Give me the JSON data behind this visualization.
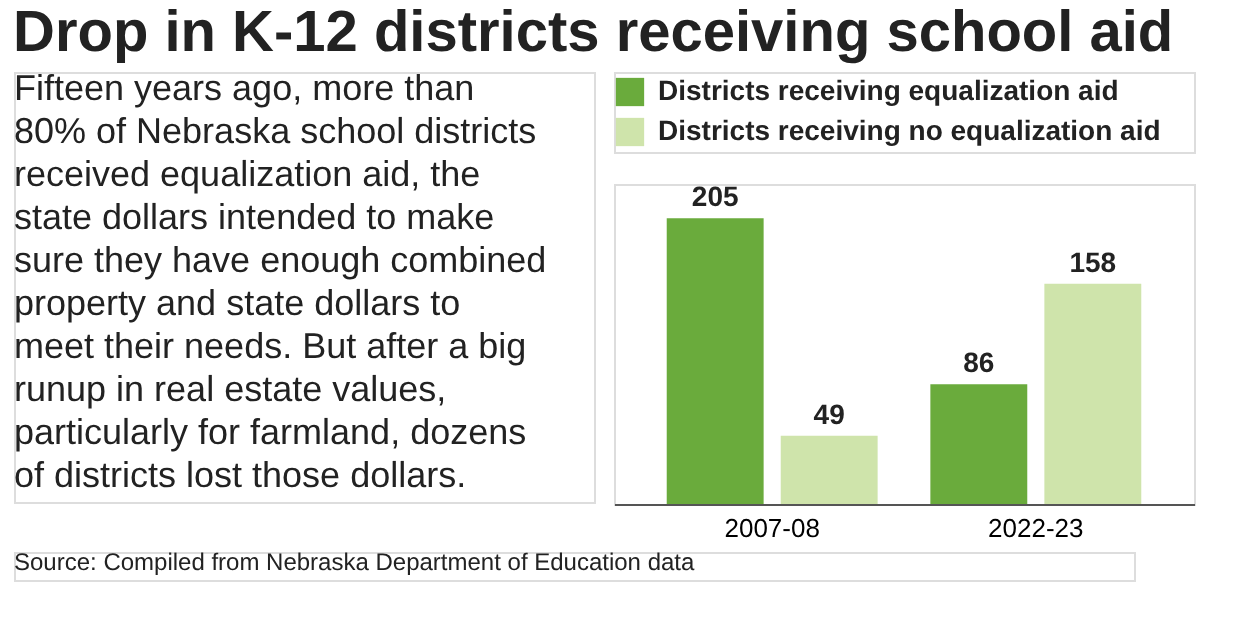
{
  "chart_data": {
    "type": "bar",
    "title": "Drop in K-12 districts receiving school aid",
    "categories": [
      "2007-08",
      "2022-23"
    ],
    "series": [
      {
        "name": "Districts receiving equalization aid",
        "color": "#6aab3c",
        "values": [
          205,
          86
        ]
      },
      {
        "name": "Districts receiving no equalization aid",
        "color": "#cfe4ab",
        "values": [
          49,
          158
        ]
      }
    ],
    "data_labels": true,
    "legend": "top",
    "tick_labels": "x",
    "grid": false,
    "annotations": [
      "Fifteen years ago, more than\n80% of Nebraska school districts\nreceived equalization aid, the\nstate dollars intended to make\nsure they have enough combined\nproperty and state dollars to\nmeet their needs. But after a big\nrunup in real estate values,\nparticularly for farmland, dozens\nof districts lost those dollars.",
      "Source: Compiled from Nebraska Department of Education data"
    ]
  }
}
